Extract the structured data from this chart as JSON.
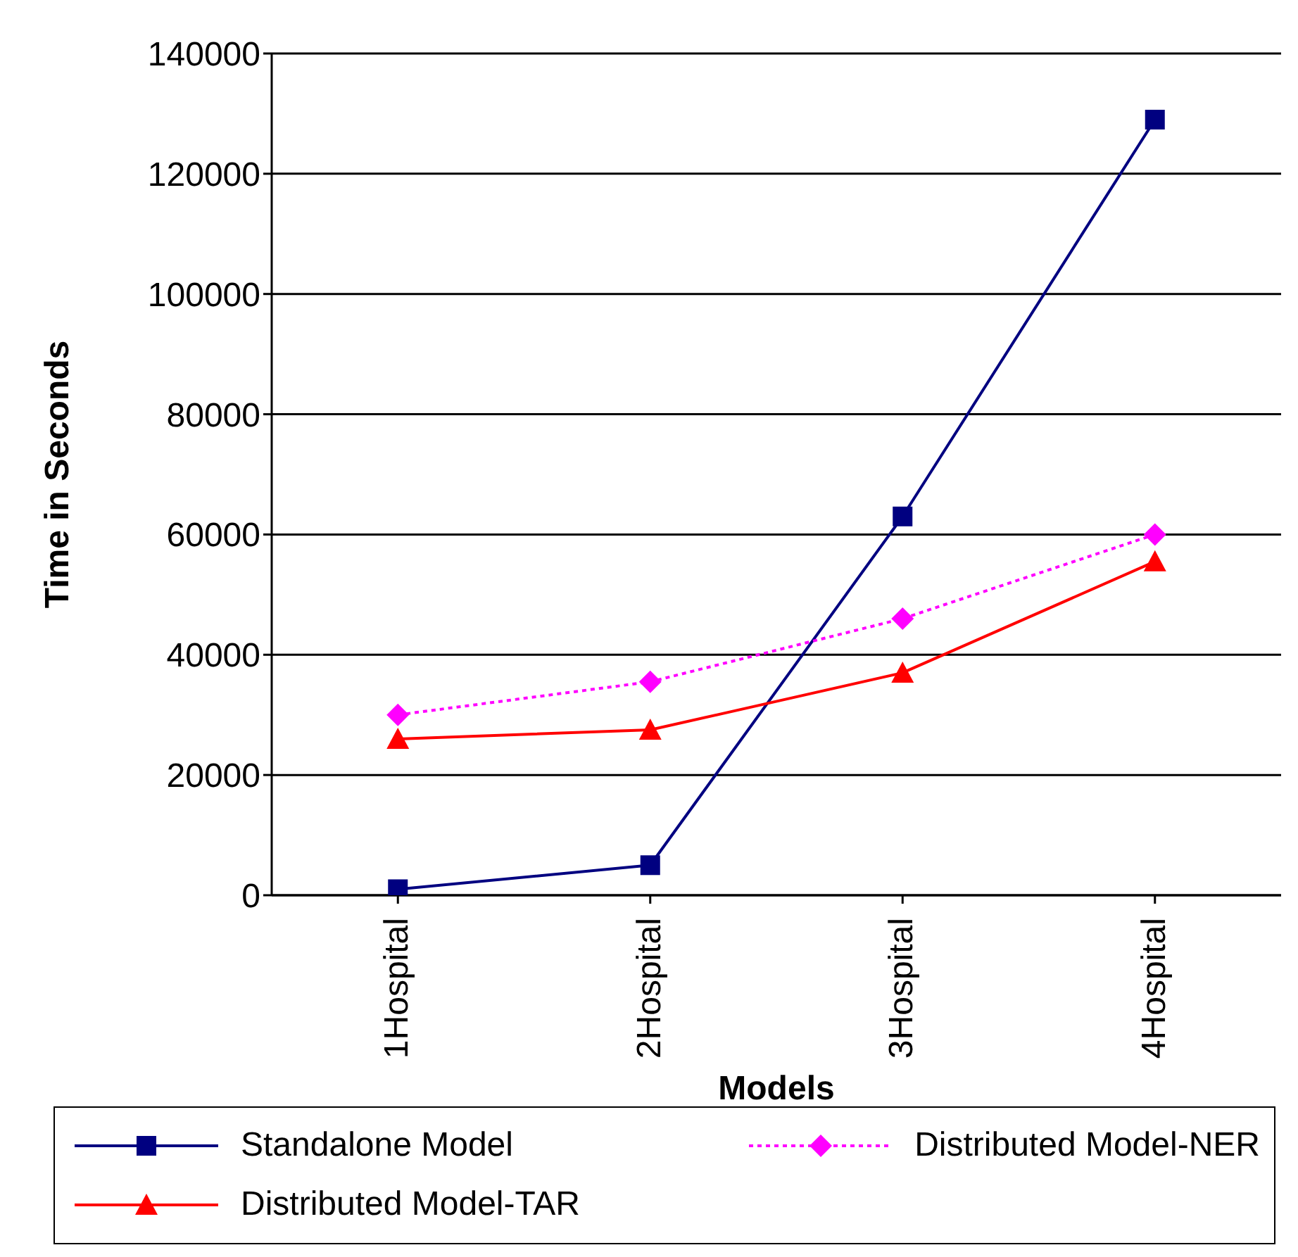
{
  "chart_data": {
    "type": "line",
    "xlabel": "Models",
    "ylabel": "Time in Seconds",
    "categories": [
      "1Hospital",
      "2Hospital",
      "3Hospital",
      "4Hospital"
    ],
    "series": [
      {
        "name": "Standalone Model",
        "color": "#000080",
        "marker": "square",
        "line_style": "solid",
        "values": [
          1000,
          5000,
          63000,
          129000
        ]
      },
      {
        "name": "Distributed Model-NER",
        "color": "#ff00ff",
        "marker": "diamond",
        "line_style": "dotted",
        "values": [
          30000,
          35500,
          46000,
          60000
        ]
      },
      {
        "name": "Distributed Model-TAR",
        "color": "#ff0000",
        "marker": "triangle",
        "line_style": "solid",
        "values": [
          26000,
          27500,
          37000,
          55500
        ]
      }
    ],
    "ylim": [
      0,
      140000
    ],
    "yticks": [
      0,
      20000,
      40000,
      60000,
      80000,
      100000,
      120000,
      140000
    ],
    "grid": "y",
    "legend": "bottom"
  }
}
